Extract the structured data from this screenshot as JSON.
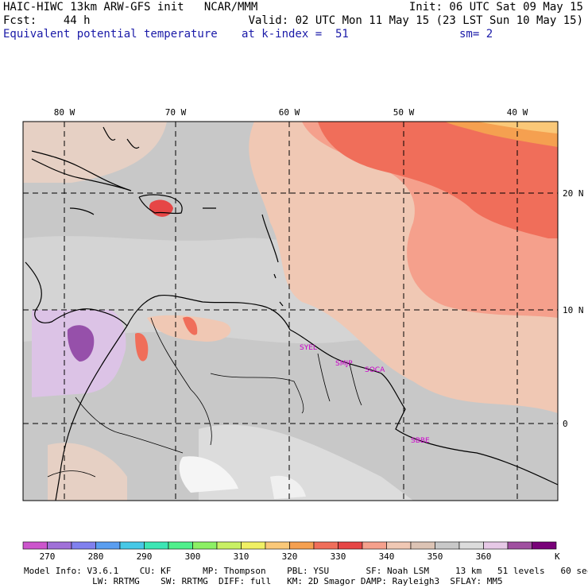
{
  "header": {
    "line1_left": "HAIC-HIWC 13km ARW-GFS init   NCAR/MMM",
    "line1_right": "Init: 06 UTC Sat 09 May 15",
    "line2_left": "Fcst:    44 h",
    "line2_right": "Valid: 02 UTC Mon 11 May 15 (23 LST Sun 10 May 15)",
    "line3_left": "Equivalent potential temperature",
    "line3_mid": "at k-index =  51",
    "line3_right": "sm= 2"
  },
  "map": {
    "lon_labels": [
      "80 W",
      "70 W",
      "60 W",
      "50 W",
      "40 W"
    ],
    "lat_labels": [
      "20 N",
      "10 N",
      "0"
    ],
    "stations": [
      "SYEL",
      "SMJP",
      "SOCA",
      "SBBE"
    ],
    "colors": {
      "land_gray": "#c8c8c8",
      "light_gray": "#dcdcdc",
      "tan": "#f0c8b4",
      "salmon": "#f5a08c",
      "orange_red": "#f06e5a",
      "orange": "#f5a050",
      "yellow_orange": "#fac878",
      "red": "#e64646",
      "lavender": "#dcc3e6",
      "purple": "#9650aa",
      "white": "#f5f5f5"
    }
  },
  "colorbar": {
    "colors": [
      "#cc55cc",
      "#a070d8",
      "#8080ee",
      "#5a9ef0",
      "#46c8e6",
      "#3ce6b4",
      "#50f08c",
      "#8cf064",
      "#c8f064",
      "#f0f064",
      "#fac878",
      "#f5a050",
      "#f06e5a",
      "#e64646",
      "#f5a08c",
      "#f0c8b4",
      "#dcc3b4",
      "#c8c8c8",
      "#dcdcdc",
      "#e6c8e6",
      "#a050a0",
      "#780078"
    ],
    "ticks": [
      "270",
      "280",
      "290",
      "300",
      "310",
      "320",
      "330",
      "340",
      "350",
      "360"
    ],
    "unit": "K"
  },
  "footer": {
    "line1": "Model Info: V3.6.1    CU: KF      MP: Thompson    PBL: YSU       SF: Noah LSM     13 km   51 levels   60 sec",
    "line2": "             LW: RRTMG    SW: RRTMG  DIFF: full   KM: 2D Smagor DAMP: Rayleigh3  SFLAY: MM5"
  }
}
